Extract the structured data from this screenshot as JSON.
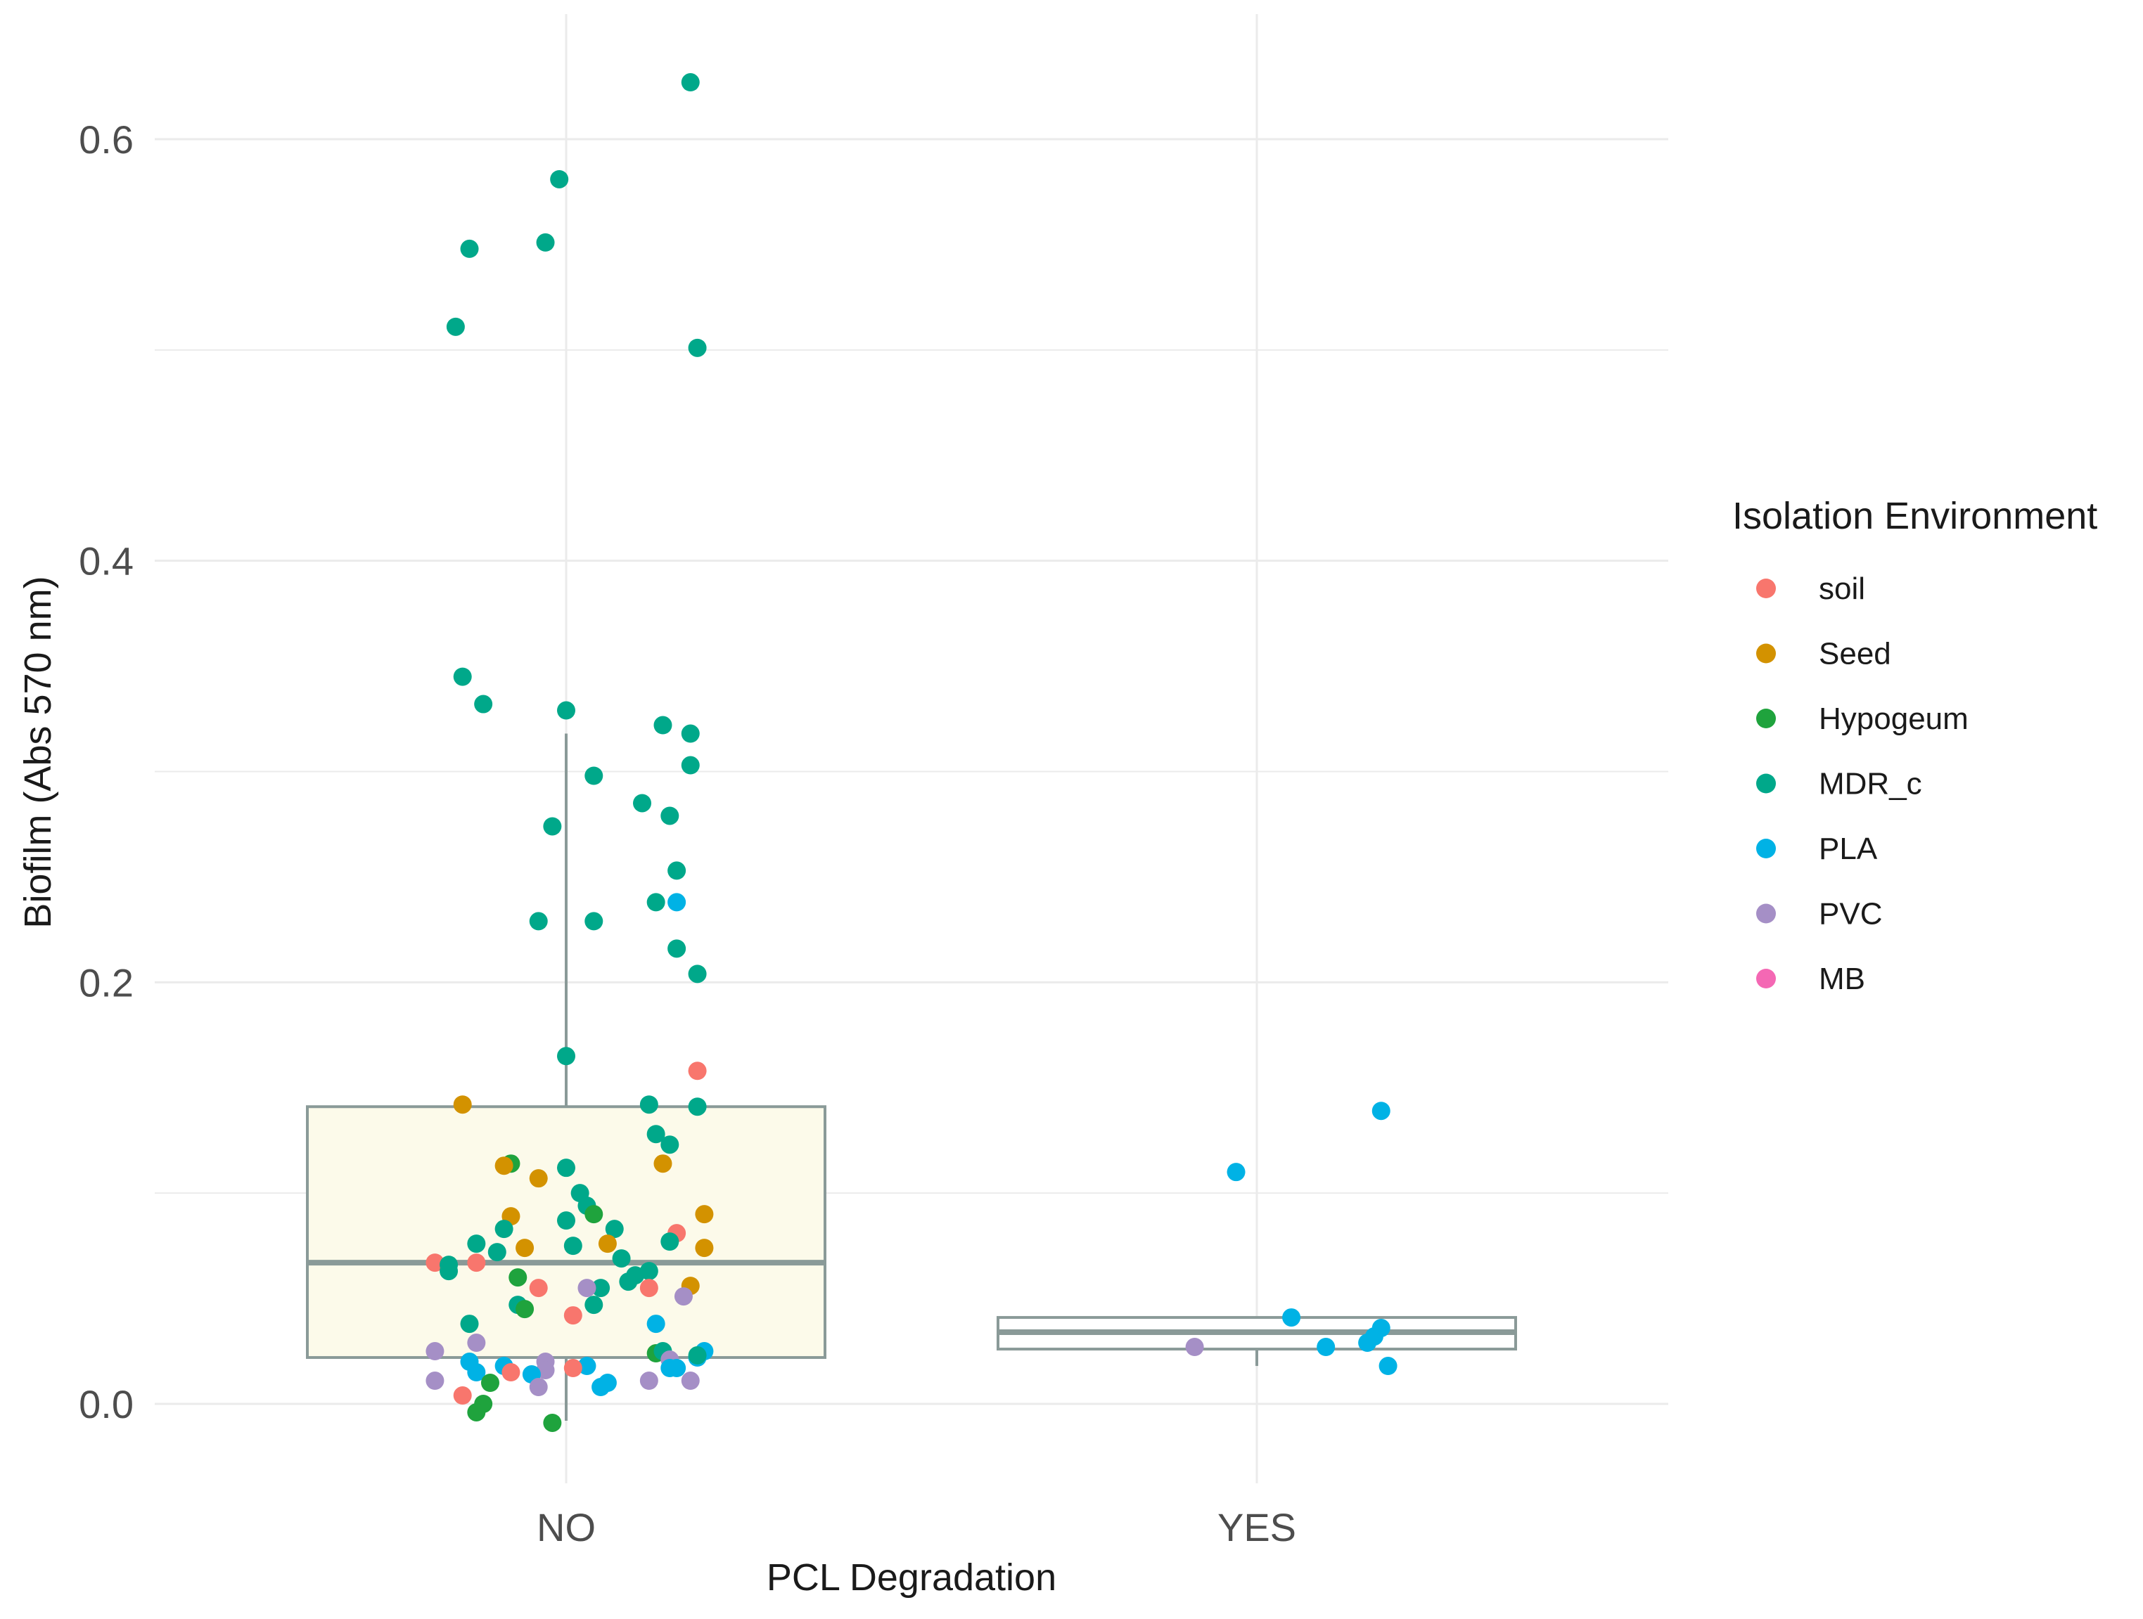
{
  "chart_data": {
    "type": "scatter",
    "subtype": "boxplot-with-jittered-points",
    "title": "",
    "xlabel": "PCL Degradation",
    "ylabel": "Biofilm (Abs 570 nm)",
    "categories": [
      "NO",
      "YES"
    ],
    "ylim": [
      -0.04,
      0.65
    ],
    "yticks": [
      0.0,
      0.2,
      0.4,
      0.6
    ],
    "ytick_labels": [
      "0.0",
      "0.2",
      "0.4",
      "0.6"
    ],
    "grid": true,
    "legend": {
      "title": "Isolation Environment",
      "placement": "right",
      "entries": [
        {
          "name": "soil",
          "color": "#F8766D"
        },
        {
          "name": "Seed",
          "color": "#D39200"
        },
        {
          "name": "Hypogeum",
          "color": "#1FA33D"
        },
        {
          "name": "MDR_c",
          "color": "#00A88A"
        },
        {
          "name": "PLA",
          "color": "#00B2E5"
        },
        {
          "name": "PVC",
          "color": "#A58FC6"
        },
        {
          "name": "MB",
          "color": "#F468B4"
        }
      ]
    },
    "boxes": [
      {
        "category": "NO",
        "whisker_low": -0.008,
        "q1": 0.022,
        "median": 0.067,
        "q3": 0.141,
        "whisker_high": 0.318
      },
      {
        "category": "YES",
        "whisker_low": 0.018,
        "q1": 0.026,
        "median": 0.034,
        "q3": 0.041,
        "whisker_high": 0.041
      }
    ],
    "box_style": {
      "NO_fill": "#FCFAEA",
      "YES_fill": "#FFFFFF",
      "stroke": "#8A9A98"
    },
    "points": [
      {
        "category": "NO",
        "group": "MDR_c",
        "offset": 0.18,
        "y": 0.627
      },
      {
        "category": "NO",
        "group": "MDR_c",
        "offset": -0.01,
        "y": 0.581
      },
      {
        "category": "NO",
        "group": "MDR_c",
        "offset": -0.14,
        "y": 0.548
      },
      {
        "category": "NO",
        "group": "MDR_c",
        "offset": -0.03,
        "y": 0.551
      },
      {
        "category": "NO",
        "group": "MDR_c",
        "offset": -0.16,
        "y": 0.511
      },
      {
        "category": "NO",
        "group": "MDR_c",
        "offset": 0.19,
        "y": 0.501
      },
      {
        "category": "NO",
        "group": "MDR_c",
        "offset": -0.15,
        "y": 0.345
      },
      {
        "category": "NO",
        "group": "MDR_c",
        "offset": -0.12,
        "y": 0.332
      },
      {
        "category": "NO",
        "group": "MDR_c",
        "offset": 0.0,
        "y": 0.329
      },
      {
        "category": "NO",
        "group": "MDR_c",
        "offset": 0.14,
        "y": 0.322
      },
      {
        "category": "NO",
        "group": "MDR_c",
        "offset": 0.18,
        "y": 0.318
      },
      {
        "category": "NO",
        "group": "MDR_c",
        "offset": 0.18,
        "y": 0.303
      },
      {
        "category": "NO",
        "group": "MDR_c",
        "offset": 0.04,
        "y": 0.298
      },
      {
        "category": "NO",
        "group": "MDR_c",
        "offset": 0.11,
        "y": 0.285
      },
      {
        "category": "NO",
        "group": "MDR_c",
        "offset": 0.15,
        "y": 0.279
      },
      {
        "category": "NO",
        "group": "MDR_c",
        "offset": -0.02,
        "y": 0.274
      },
      {
        "category": "NO",
        "group": "MDR_c",
        "offset": 0.16,
        "y": 0.253
      },
      {
        "category": "NO",
        "group": "MDR_c",
        "offset": 0.13,
        "y": 0.238
      },
      {
        "category": "NO",
        "group": "PLA",
        "offset": 0.16,
        "y": 0.238
      },
      {
        "category": "NO",
        "group": "MDR_c",
        "offset": -0.04,
        "y": 0.229
      },
      {
        "category": "NO",
        "group": "MDR_c",
        "offset": 0.04,
        "y": 0.229
      },
      {
        "category": "NO",
        "group": "MDR_c",
        "offset": 0.16,
        "y": 0.216
      },
      {
        "category": "NO",
        "group": "MDR_c",
        "offset": 0.19,
        "y": 0.204
      },
      {
        "category": "NO",
        "group": "MDR_c",
        "offset": 0.0,
        "y": 0.165
      },
      {
        "category": "NO",
        "group": "soil",
        "offset": 0.19,
        "y": 0.158
      },
      {
        "category": "NO",
        "group": "Seed",
        "offset": -0.15,
        "y": 0.142
      },
      {
        "category": "NO",
        "group": "MDR_c",
        "offset": 0.12,
        "y": 0.142
      },
      {
        "category": "NO",
        "group": "MDR_c",
        "offset": 0.19,
        "y": 0.141
      },
      {
        "category": "NO",
        "group": "MDR_c",
        "offset": 0.13,
        "y": 0.128
      },
      {
        "category": "NO",
        "group": "MDR_c",
        "offset": 0.15,
        "y": 0.123
      },
      {
        "category": "NO",
        "group": "Hypogeum",
        "offset": -0.08,
        "y": 0.114
      },
      {
        "category": "NO",
        "group": "Seed",
        "offset": -0.09,
        "y": 0.113
      },
      {
        "category": "NO",
        "group": "Seed",
        "offset": 0.14,
        "y": 0.114
      },
      {
        "category": "NO",
        "group": "MDR_c",
        "offset": 0.0,
        "y": 0.112
      },
      {
        "category": "NO",
        "group": "Seed",
        "offset": -0.04,
        "y": 0.107
      },
      {
        "category": "NO",
        "group": "MDR_c",
        "offset": 0.02,
        "y": 0.1
      },
      {
        "category": "NO",
        "group": "MDR_c",
        "offset": 0.03,
        "y": 0.094
      },
      {
        "category": "NO",
        "group": "Hypogeum",
        "offset": 0.04,
        "y": 0.09
      },
      {
        "category": "NO",
        "group": "Seed",
        "offset": 0.2,
        "y": 0.09
      },
      {
        "category": "NO",
        "group": "Seed",
        "offset": -0.08,
        "y": 0.089
      },
      {
        "category": "NO",
        "group": "MDR_c",
        "offset": 0.0,
        "y": 0.087
      },
      {
        "category": "NO",
        "group": "MDR_c",
        "offset": -0.09,
        "y": 0.083
      },
      {
        "category": "NO",
        "group": "MDR_c",
        "offset": 0.07,
        "y": 0.083
      },
      {
        "category": "NO",
        "group": "soil",
        "offset": 0.16,
        "y": 0.081
      },
      {
        "category": "NO",
        "group": "MDR_c",
        "offset": 0.15,
        "y": 0.077
      },
      {
        "category": "NO",
        "group": "Seed",
        "offset": 0.06,
        "y": 0.076
      },
      {
        "category": "NO",
        "group": "MDR_c",
        "offset": -0.13,
        "y": 0.076
      },
      {
        "category": "NO",
        "group": "Seed",
        "offset": -0.06,
        "y": 0.074
      },
      {
        "category": "NO",
        "group": "MDR_c",
        "offset": 0.01,
        "y": 0.075
      },
      {
        "category": "NO",
        "group": "Seed",
        "offset": 0.2,
        "y": 0.074
      },
      {
        "category": "NO",
        "group": "MDR_c",
        "offset": -0.1,
        "y": 0.072
      },
      {
        "category": "NO",
        "group": "MDR_c",
        "offset": 0.08,
        "y": 0.069
      },
      {
        "category": "NO",
        "group": "soil",
        "offset": -0.19,
        "y": 0.067
      },
      {
        "category": "NO",
        "group": "MDR_c",
        "offset": -0.17,
        "y": 0.066
      },
      {
        "category": "NO",
        "group": "soil",
        "offset": -0.13,
        "y": 0.067
      },
      {
        "category": "NO",
        "group": "MDR_c",
        "offset": -0.17,
        "y": 0.063
      },
      {
        "category": "NO",
        "group": "MDR_c",
        "offset": 0.12,
        "y": 0.063
      },
      {
        "category": "NO",
        "group": "MDR_c",
        "offset": 0.1,
        "y": 0.061
      },
      {
        "category": "NO",
        "group": "Hypogeum",
        "offset": -0.07,
        "y": 0.06
      },
      {
        "category": "NO",
        "group": "MDR_c",
        "offset": 0.09,
        "y": 0.058
      },
      {
        "category": "NO",
        "group": "soil",
        "offset": -0.04,
        "y": 0.055
      },
      {
        "category": "NO",
        "group": "MDR_c",
        "offset": 0.05,
        "y": 0.055
      },
      {
        "category": "NO",
        "group": "PVC",
        "offset": 0.03,
        "y": 0.055
      },
      {
        "category": "NO",
        "group": "soil",
        "offset": 0.12,
        "y": 0.055
      },
      {
        "category": "NO",
        "group": "Seed",
        "offset": 0.18,
        "y": 0.056
      },
      {
        "category": "NO",
        "group": "PVC",
        "offset": 0.17,
        "y": 0.051
      },
      {
        "category": "NO",
        "group": "MDR_c",
        "offset": -0.07,
        "y": 0.047
      },
      {
        "category": "NO",
        "group": "MDR_c",
        "offset": 0.04,
        "y": 0.047
      },
      {
        "category": "NO",
        "group": "Hypogeum",
        "offset": -0.06,
        "y": 0.045
      },
      {
        "category": "NO",
        "group": "soil",
        "offset": 0.01,
        "y": 0.042
      },
      {
        "category": "NO",
        "group": "MDR_c",
        "offset": -0.14,
        "y": 0.038
      },
      {
        "category": "NO",
        "group": "PLA",
        "offset": 0.13,
        "y": 0.038
      },
      {
        "category": "NO",
        "group": "PVC",
        "offset": -0.19,
        "y": 0.025
      },
      {
        "category": "NO",
        "group": "Hypogeum",
        "offset": 0.13,
        "y": 0.024
      },
      {
        "category": "NO",
        "group": "MDR_c",
        "offset": 0.14,
        "y": 0.025
      },
      {
        "category": "NO",
        "group": "PLA",
        "offset": 0.2,
        "y": 0.025
      },
      {
        "category": "NO",
        "group": "PVC",
        "offset": -0.13,
        "y": 0.029
      },
      {
        "category": "NO",
        "group": "PVC",
        "offset": 0.15,
        "y": 0.021
      },
      {
        "category": "NO",
        "group": "PLA",
        "offset": 0.19,
        "y": 0.022
      },
      {
        "category": "NO",
        "group": "MDR_c",
        "offset": 0.19,
        "y": 0.023
      },
      {
        "category": "NO",
        "group": "PLA",
        "offset": -0.14,
        "y": 0.02
      },
      {
        "category": "NO",
        "group": "PVC",
        "offset": -0.03,
        "y": 0.02
      },
      {
        "category": "NO",
        "group": "PLA",
        "offset": -0.09,
        "y": 0.018
      },
      {
        "category": "NO",
        "group": "PLA",
        "offset": 0.03,
        "y": 0.018
      },
      {
        "category": "NO",
        "group": "soil",
        "offset": 0.01,
        "y": 0.017
      },
      {
        "category": "NO",
        "group": "PVC",
        "offset": -0.03,
        "y": 0.016
      },
      {
        "category": "NO",
        "group": "PLA",
        "offset": 0.15,
        "y": 0.017
      },
      {
        "category": "NO",
        "group": "PLA",
        "offset": -0.13,
        "y": 0.015
      },
      {
        "category": "NO",
        "group": "PLA",
        "offset": 0.16,
        "y": 0.017
      },
      {
        "category": "NO",
        "group": "soil",
        "offset": -0.08,
        "y": 0.015
      },
      {
        "category": "NO",
        "group": "PLA",
        "offset": -0.05,
        "y": 0.014
      },
      {
        "category": "NO",
        "group": "PVC",
        "offset": -0.19,
        "y": 0.011
      },
      {
        "category": "NO",
        "group": "PVC",
        "offset": 0.12,
        "y": 0.011
      },
      {
        "category": "NO",
        "group": "PVC",
        "offset": 0.18,
        "y": 0.011
      },
      {
        "category": "NO",
        "group": "Hypogeum",
        "offset": -0.11,
        "y": 0.01
      },
      {
        "category": "NO",
        "group": "PLA",
        "offset": 0.06,
        "y": 0.01
      },
      {
        "category": "NO",
        "group": "PVC",
        "offset": -0.04,
        "y": 0.008
      },
      {
        "category": "NO",
        "group": "PLA",
        "offset": 0.05,
        "y": 0.008
      },
      {
        "category": "NO",
        "group": "soil",
        "offset": -0.15,
        "y": 0.004
      },
      {
        "category": "NO",
        "group": "Hypogeum",
        "offset": -0.12,
        "y": 0.0
      },
      {
        "category": "NO",
        "group": "Hypogeum",
        "offset": -0.13,
        "y": -0.004
      },
      {
        "category": "NO",
        "group": "Hypogeum",
        "offset": -0.02,
        "y": -0.009
      },
      {
        "category": "YES",
        "group": "PLA",
        "offset": 0.18,
        "y": 0.139
      },
      {
        "category": "YES",
        "group": "PLA",
        "offset": -0.03,
        "y": 0.11
      },
      {
        "category": "YES",
        "group": "PLA",
        "offset": 0.05,
        "y": 0.041
      },
      {
        "category": "YES",
        "group": "PLA",
        "offset": 0.18,
        "y": 0.036
      },
      {
        "category": "YES",
        "group": "PLA",
        "offset": 0.17,
        "y": 0.032
      },
      {
        "category": "YES",
        "group": "PLA",
        "offset": 0.16,
        "y": 0.029
      },
      {
        "category": "YES",
        "group": "PVC",
        "offset": -0.09,
        "y": 0.027
      },
      {
        "category": "YES",
        "group": "PLA",
        "offset": 0.1,
        "y": 0.027
      },
      {
        "category": "YES",
        "group": "PLA",
        "offset": 0.19,
        "y": 0.018
      }
    ]
  }
}
